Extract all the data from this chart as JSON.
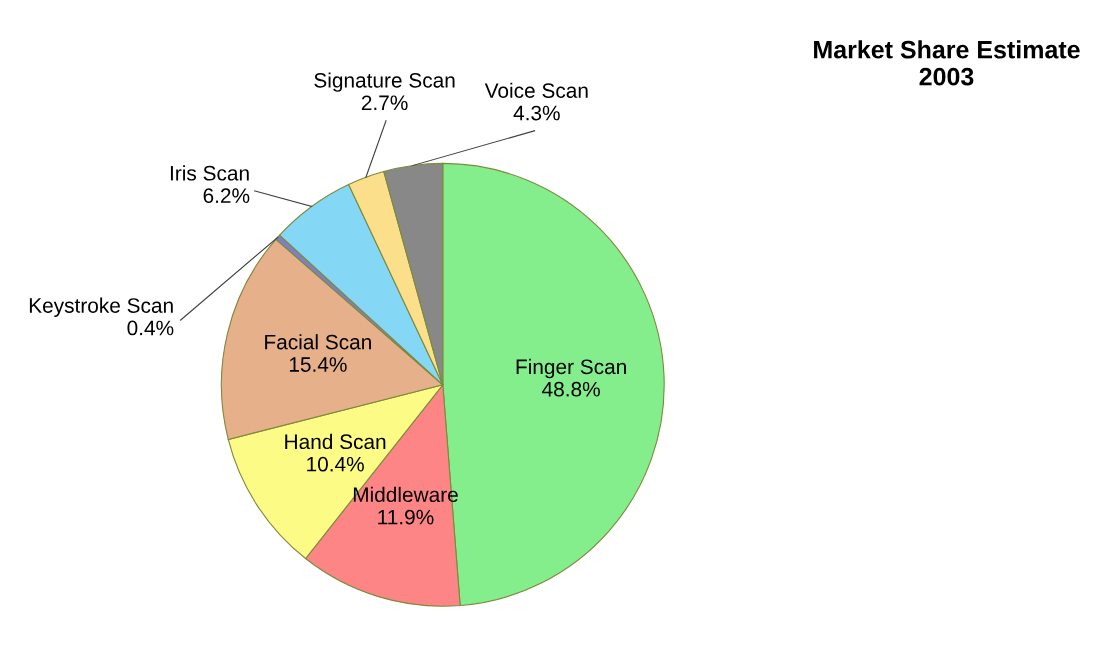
{
  "chart_data": {
    "type": "pie",
    "title": "Market Share Estimate\n2003",
    "categories": [
      "Finger Scan",
      "Middleware",
      "Hand Scan",
      "Facial Scan",
      "Keystroke Scan",
      "Iris Scan",
      "Signature Scan",
      "Voice Scan"
    ],
    "values": [
      48.8,
      11.9,
      10.4,
      15.4,
      0.4,
      6.2,
      2.7,
      4.3
    ],
    "value_labels": [
      "48.8%",
      "11.9%",
      "10.4%",
      "15.4%",
      "0.4%",
      "6.2%",
      "2.7%",
      "4.3%"
    ],
    "colors": [
      "#84ee8c",
      "#fd8585",
      "#fbfb85",
      "#e6b08a",
      "#8080c0",
      "#84d8f6",
      "#fbdf8a",
      "#888888"
    ]
  }
}
